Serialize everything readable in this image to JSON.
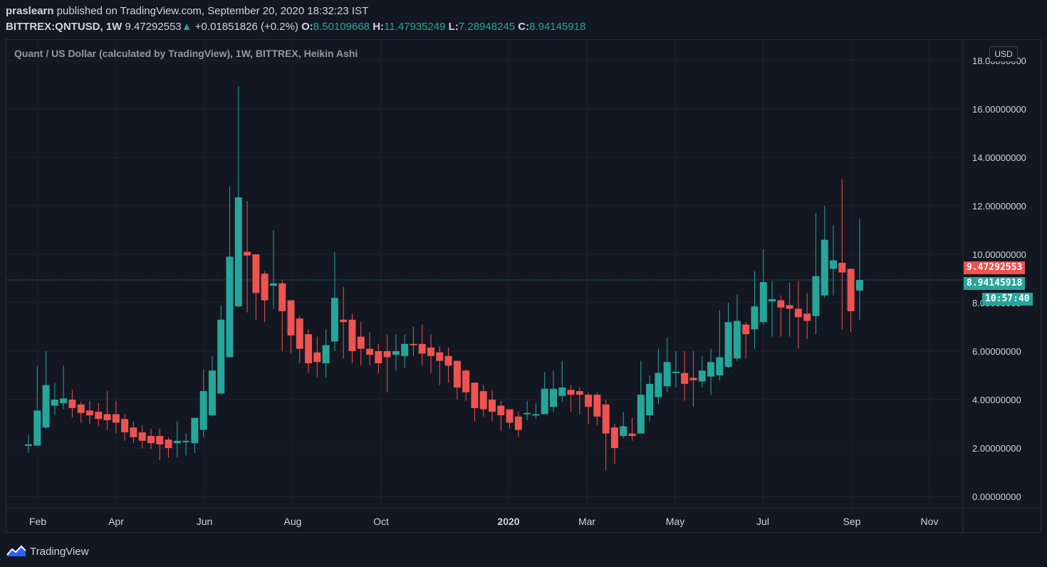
{
  "header": {
    "user": "praslearn",
    "published_text": "published on TradingView.com, September 20, 2020 18:32:23 IST",
    "symbol": "BITTREX:QNTUSD, 1W",
    "last": "9.47292553",
    "change_arrow": "▲",
    "change": "+0.01851826 (+0.2%)",
    "o_label": "O:",
    "o_value": "8.50109668",
    "h_label": "H:",
    "h_value": "11.47935249",
    "l_label": "L:",
    "l_value": "7.28948245",
    "c_label": "C:",
    "c_value": "8.94145918"
  },
  "chart_title": "Quant / US Dollar (calculated by TradingView), 1W, BITTREX, Heikin Ashi",
  "currency_button": "USD",
  "price_tags": {
    "last_price": "9.47292553",
    "ha_close": "8.94145918",
    "countdown": "10:57:40"
  },
  "footer": {
    "brand": "TradingView",
    "logo_icon": "tradingview-logo-icon"
  },
  "colors": {
    "up": "#26a69a",
    "down": "#ef5350",
    "background": "#131722",
    "grid": "#1e222d",
    "text": "#d1d4dc"
  },
  "chart_data": {
    "type": "candlestick",
    "title": "Quant / US Dollar (calculated by TradingView), 1W, BITTREX, Heikin Ashi",
    "ylim": [
      -0.5,
      18.7
    ],
    "y_ticks": [
      "0.00000000",
      "2.00000000",
      "4.00000000",
      "6.00000000",
      "8.00000000",
      "10.00000000",
      "12.00000000",
      "14.00000000",
      "16.00000000",
      "18.00000000"
    ],
    "y_tick_values": [
      0,
      2,
      4,
      6,
      8,
      10,
      12,
      14,
      16,
      18
    ],
    "x_ticks": [
      "Feb",
      "Apr",
      "Jun",
      "Aug",
      "Oct",
      "2020",
      "Mar",
      "May",
      "Jul",
      "Sep",
      "Nov"
    ],
    "grid": true,
    "candles": [
      {
        "o": 2.1,
        "c": 2.15,
        "h": 2.55,
        "l": 1.8
      },
      {
        "o": 2.1,
        "c": 3.55,
        "h": 5.4,
        "l": 2.1
      },
      {
        "o": 2.85,
        "c": 4.6,
        "h": 6.0,
        "l": 2.8
      },
      {
        "o": 3.75,
        "c": 4.0,
        "h": 4.7,
        "l": 3.35
      },
      {
        "o": 3.85,
        "c": 4.05,
        "h": 5.4,
        "l": 3.6
      },
      {
        "o": 4.0,
        "c": 3.65,
        "h": 4.4,
        "l": 3.25
      },
      {
        "o": 3.8,
        "c": 3.45,
        "h": 3.9,
        "l": 3.05
      },
      {
        "o": 3.55,
        "c": 3.35,
        "h": 3.95,
        "l": 3.0
      },
      {
        "o": 3.5,
        "c": 3.2,
        "h": 3.85,
        "l": 2.9
      },
      {
        "o": 3.4,
        "c": 3.15,
        "h": 4.35,
        "l": 2.75
      },
      {
        "o": 3.4,
        "c": 3.05,
        "h": 3.95,
        "l": 2.6
      },
      {
        "o": 3.2,
        "c": 2.65,
        "h": 3.4,
        "l": 2.3
      },
      {
        "o": 2.85,
        "c": 2.45,
        "h": 3.1,
        "l": 2.2
      },
      {
        "o": 2.65,
        "c": 2.3,
        "h": 2.95,
        "l": 2.0
      },
      {
        "o": 2.5,
        "c": 2.2,
        "h": 2.8,
        "l": 1.95
      },
      {
        "o": 2.5,
        "c": 2.15,
        "h": 2.8,
        "l": 1.5
      },
      {
        "o": 2.35,
        "c": 2.0,
        "h": 2.45,
        "l": 1.6
      },
      {
        "o": 2.2,
        "c": 2.3,
        "h": 3.1,
        "l": 1.6
      },
      {
        "o": 2.25,
        "c": 2.3,
        "h": 2.6,
        "l": 1.7
      },
      {
        "o": 2.2,
        "c": 3.25,
        "h": 3.25,
        "l": 1.8
      },
      {
        "o": 2.75,
        "c": 4.35,
        "h": 5.25,
        "l": 2.45
      },
      {
        "o": 3.35,
        "c": 5.2,
        "h": 5.8,
        "l": 3.3
      },
      {
        "o": 4.25,
        "c": 7.3,
        "h": 7.9,
        "l": 4.2
      },
      {
        "o": 5.75,
        "c": 9.9,
        "h": 12.8,
        "l": 5.75
      },
      {
        "o": 7.85,
        "c": 12.35,
        "h": 16.95,
        "l": 7.8
      },
      {
        "o": 10.1,
        "c": 9.95,
        "h": 12.2,
        "l": 7.6
      },
      {
        "o": 10.0,
        "c": 8.4,
        "h": 10.0,
        "l": 7.3
      },
      {
        "o": 9.2,
        "c": 8.1,
        "h": 9.3,
        "l": 7.2
      },
      {
        "o": 8.7,
        "c": 8.8,
        "h": 11.0,
        "l": 7.75
      },
      {
        "o": 8.8,
        "c": 7.65,
        "h": 8.95,
        "l": 6.0
      },
      {
        "o": 8.1,
        "c": 6.65,
        "h": 8.1,
        "l": 5.9
      },
      {
        "o": 7.35,
        "c": 6.1,
        "h": 7.45,
        "l": 5.5
      },
      {
        "o": 6.7,
        "c": 5.5,
        "h": 6.9,
        "l": 5.1
      },
      {
        "o": 5.95,
        "c": 5.55,
        "h": 6.6,
        "l": 4.9
      },
      {
        "o": 5.5,
        "c": 6.25,
        "h": 6.9,
        "l": 4.9
      },
      {
        "o": 6.4,
        "c": 8.2,
        "h": 10.1,
        "l": 6.0
      },
      {
        "o": 7.3,
        "c": 7.2,
        "h": 8.65,
        "l": 5.7
      },
      {
        "o": 7.3,
        "c": 6.0,
        "h": 7.55,
        "l": 5.5
      },
      {
        "o": 6.6,
        "c": 6.1,
        "h": 7.2,
        "l": 5.4
      },
      {
        "o": 6.1,
        "c": 5.85,
        "h": 6.8,
        "l": 5.4
      },
      {
        "o": 6.0,
        "c": 5.5,
        "h": 6.3,
        "l": 5.1
      },
      {
        "o": 6.0,
        "c": 5.75,
        "h": 6.7,
        "l": 4.3
      },
      {
        "o": 5.85,
        "c": 6.0,
        "h": 6.7,
        "l": 5.2
      },
      {
        "o": 5.8,
        "c": 6.3,
        "h": 6.7,
        "l": 5.3
      },
      {
        "o": 6.3,
        "c": 6.25,
        "h": 7.0,
        "l": 5.8
      },
      {
        "o": 6.3,
        "c": 5.9,
        "h": 7.1,
        "l": 5.4
      },
      {
        "o": 6.15,
        "c": 5.8,
        "h": 6.7,
        "l": 5.1
      },
      {
        "o": 5.95,
        "c": 5.6,
        "h": 6.2,
        "l": 4.6
      },
      {
        "o": 5.8,
        "c": 5.4,
        "h": 6.15,
        "l": 4.7
      },
      {
        "o": 5.6,
        "c": 4.5,
        "h": 5.6,
        "l": 4.0
      },
      {
        "o": 5.2,
        "c": 4.3,
        "h": 5.25,
        "l": 3.95
      },
      {
        "o": 4.7,
        "c": 3.65,
        "h": 4.7,
        "l": 3.1
      },
      {
        "o": 4.35,
        "c": 3.6,
        "h": 4.6,
        "l": 3.3
      },
      {
        "o": 4.0,
        "c": 3.5,
        "h": 4.4,
        "l": 3.1
      },
      {
        "o": 3.75,
        "c": 3.35,
        "h": 3.95,
        "l": 2.7
      },
      {
        "o": 3.6,
        "c": 3.05,
        "h": 3.6,
        "l": 2.8
      },
      {
        "o": 3.3,
        "c": 2.75,
        "h": 3.5,
        "l": 2.45
      },
      {
        "o": 3.4,
        "c": 3.45,
        "h": 3.95,
        "l": 3.15
      },
      {
        "o": 3.4,
        "c": 3.4,
        "h": 3.85,
        "l": 3.2
      },
      {
        "o": 3.4,
        "c": 4.45,
        "h": 5.15,
        "l": 3.4
      },
      {
        "o": 3.7,
        "c": 4.45,
        "h": 5.2,
        "l": 3.5
      },
      {
        "o": 4.15,
        "c": 4.5,
        "h": 5.6,
        "l": 3.9
      },
      {
        "o": 4.4,
        "c": 4.2,
        "h": 4.6,
        "l": 3.5
      },
      {
        "o": 4.35,
        "c": 4.2,
        "h": 4.5,
        "l": 3.4
      },
      {
        "o": 4.2,
        "c": 3.7,
        "h": 4.3,
        "l": 3.0
      },
      {
        "o": 4.2,
        "c": 3.3,
        "h": 4.3,
        "l": 2.95
      },
      {
        "o": 3.8,
        "c": 2.6,
        "h": 4.0,
        "l": 1.1
      },
      {
        "o": 2.85,
        "c": 2.0,
        "h": 3.0,
        "l": 1.35
      },
      {
        "o": 2.5,
        "c": 2.9,
        "h": 3.5,
        "l": 2.4
      },
      {
        "o": 2.6,
        "c": 2.5,
        "h": 3.25,
        "l": 2.3
      },
      {
        "o": 2.6,
        "c": 4.2,
        "h": 5.6,
        "l": 2.6
      },
      {
        "o": 3.35,
        "c": 4.65,
        "h": 5.0,
        "l": 3.1
      },
      {
        "o": 4.1,
        "c": 5.1,
        "h": 6.1,
        "l": 3.8
      },
      {
        "o": 4.55,
        "c": 5.55,
        "h": 6.55,
        "l": 4.3
      },
      {
        "o": 5.1,
        "c": 5.15,
        "h": 6.0,
        "l": 4.5
      },
      {
        "o": 5.1,
        "c": 4.65,
        "h": 6.0,
        "l": 3.95
      },
      {
        "o": 4.9,
        "c": 4.8,
        "h": 6.0,
        "l": 3.7
      },
      {
        "o": 4.75,
        "c": 5.2,
        "h": 5.8,
        "l": 4.5
      },
      {
        "o": 4.95,
        "c": 5.55,
        "h": 6.1,
        "l": 4.2
      },
      {
        "o": 5.0,
        "c": 5.75,
        "h": 7.7,
        "l": 4.8
      },
      {
        "o": 5.35,
        "c": 7.2,
        "h": 8.0,
        "l": 5.3
      },
      {
        "o": 5.7,
        "c": 7.25,
        "h": 8.35,
        "l": 5.6
      },
      {
        "o": 7.1,
        "c": 6.7,
        "h": 7.2,
        "l": 5.7
      },
      {
        "o": 6.9,
        "c": 7.85,
        "h": 9.3,
        "l": 6.1
      },
      {
        "o": 7.2,
        "c": 8.85,
        "h": 10.2,
        "l": 7.1
      },
      {
        "o": 8.05,
        "c": 8.15,
        "h": 8.9,
        "l": 6.6
      },
      {
        "o": 8.1,
        "c": 7.8,
        "h": 8.3,
        "l": 6.6
      },
      {
        "o": 7.9,
        "c": 7.75,
        "h": 8.85,
        "l": 6.6
      },
      {
        "o": 7.75,
        "c": 7.4,
        "h": 8.9,
        "l": 6.1
      },
      {
        "o": 7.55,
        "c": 7.25,
        "h": 8.4,
        "l": 6.5
      },
      {
        "o": 7.45,
        "c": 9.1,
        "h": 11.7,
        "l": 6.7
      },
      {
        "o": 8.3,
        "c": 10.6,
        "h": 12.0,
        "l": 8.2
      },
      {
        "o": 9.4,
        "c": 9.75,
        "h": 11.2,
        "l": 8.3
      },
      {
        "o": 9.65,
        "c": 9.25,
        "h": 13.1,
        "l": 6.9
      },
      {
        "o": 9.4,
        "c": 7.65,
        "h": 9.4,
        "l": 6.8
      },
      {
        "o": 8.5,
        "c": 8.94,
        "h": 11.48,
        "l": 7.29
      }
    ],
    "last_price": 9.47292553,
    "ha_close": 8.94145918
  }
}
